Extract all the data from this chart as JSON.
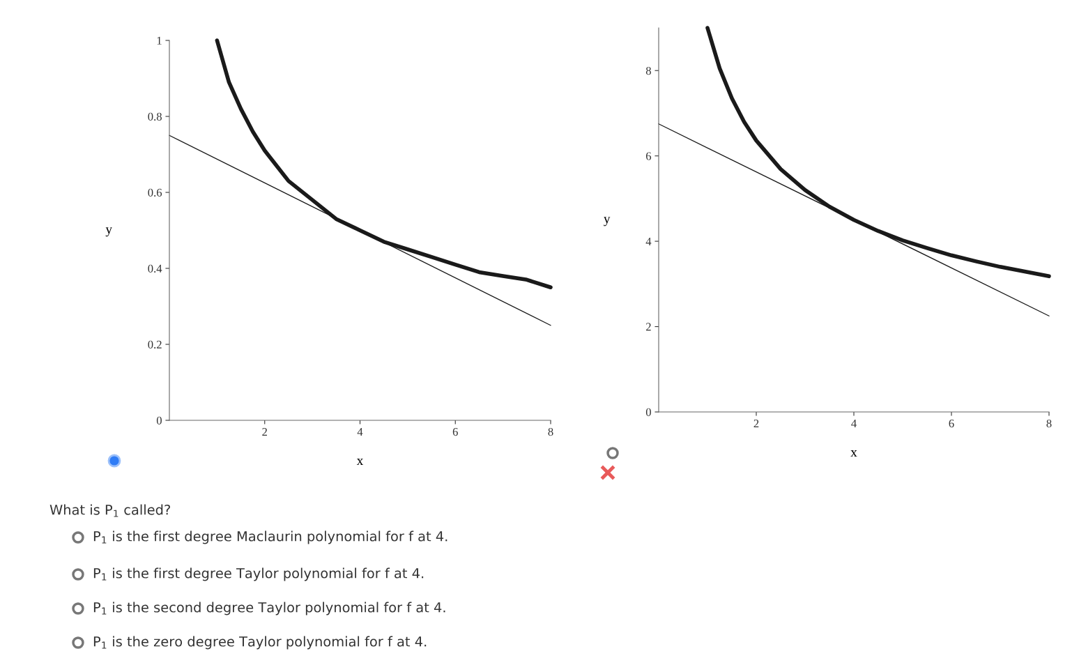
{
  "chart_data": [
    {
      "type": "line",
      "xlabel": "x",
      "ylabel": "y",
      "xlim": [
        0,
        8
      ],
      "ylim": [
        0,
        1
      ],
      "xticks": [
        2,
        4,
        6,
        8
      ],
      "yticks": [
        0,
        0.2,
        0.4,
        0.6,
        0.8,
        1
      ],
      "grid": false,
      "legend": false,
      "series": [
        {
          "color": "#1a1a1a",
          "x": [
            1,
            1.25,
            1.5,
            1.75,
            2,
            2.5,
            3,
            3.5,
            4,
            4.5,
            5,
            5.5,
            6,
            6.5,
            7,
            7.5,
            8
          ],
          "values": [
            1,
            0.89,
            0.82,
            0.76,
            0.71,
            0.63,
            0.58,
            0.53,
            0.5,
            0.47,
            0.45,
            0.43,
            0.41,
            0.39,
            0.38,
            0.37,
            0.35
          ]
        },
        {
          "color": "#1a1a1a",
          "x": [
            0,
            8
          ],
          "values": [
            0.75,
            0.25
          ]
        }
      ]
    },
    {
      "type": "line",
      "xlabel": "x",
      "ylabel": "y",
      "xlim": [
        0,
        8
      ],
      "ylim": [
        0,
        9
      ],
      "xticks": [
        2,
        4,
        6,
        8
      ],
      "yticks": [
        0,
        2,
        4,
        6,
        8
      ],
      "grid": false,
      "legend": false,
      "series": [
        {
          "color": "#1a1a1a",
          "x": [
            1,
            1.25,
            1.5,
            1.75,
            2,
            2.5,
            3,
            3.5,
            4,
            4.5,
            5,
            5.5,
            6,
            6.5,
            7,
            7.5,
            8
          ],
          "values": [
            9,
            8.05,
            7.35,
            6.8,
            6.36,
            5.69,
            5.2,
            4.81,
            4.5,
            4.24,
            4.02,
            3.84,
            3.67,
            3.53,
            3.4,
            3.29,
            3.18
          ]
        },
        {
          "color": "#1a1a1a",
          "x": [
            0,
            8
          ],
          "values": [
            6.75,
            2.25
          ]
        }
      ]
    },
    {
      "type": "other",
      "annotations": [
        "What is P$_{1}$ called?",
        "P$_{1}$ is the first degree Maclaurin polynomial for f at 4.",
        "P$_{1}$ is the first degree Taylor polynomial for f at 4.",
        "P$_{1}$ is the second degree Taylor polynomial for f at 4.",
        "P$_{1}$ is the zero degree Taylor polynomial for f at 4."
      ]
    }
  ]
}
